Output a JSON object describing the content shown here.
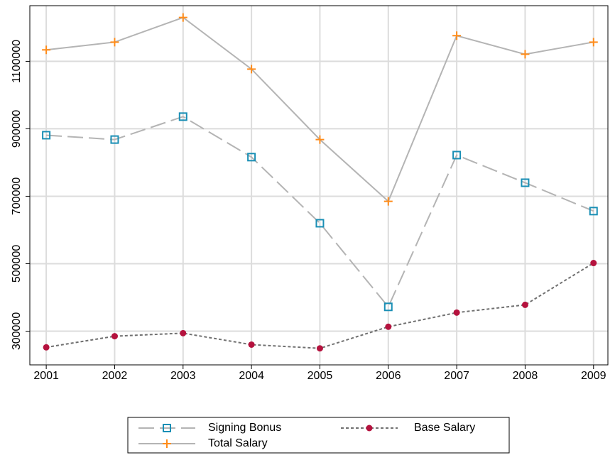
{
  "chart_data": {
    "type": "line",
    "x": [
      2001,
      2002,
      2003,
      2004,
      2005,
      2006,
      2007,
      2008,
      2009
    ],
    "series": [
      {
        "name": "Signing Bonus",
        "color": "#1a8fb5",
        "line_color": "#b4b4b4",
        "marker": "square",
        "dash": "long",
        "values": [
          881000,
          868000,
          936000,
          816000,
          620000,
          372000,
          822000,
          740000,
          656000
        ]
      },
      {
        "name": "Base Salary",
        "color": "#b5123e",
        "line_color": "#707070",
        "marker": "circle",
        "dash": "short",
        "values": [
          252000,
          285000,
          294000,
          260000,
          249000,
          313000,
          355000,
          378000,
          502000
        ]
      },
      {
        "name": "Total Salary",
        "color": "#ff8c1a",
        "line_color": "#b4b4b4",
        "marker": "plus",
        "dash": "solid",
        "values": [
          1134000,
          1157000,
          1230000,
          1077000,
          868000,
          685000,
          1176000,
          1121000,
          1157000
        ]
      }
    ],
    "xlim": [
      2000.76,
      2009.21
    ],
    "xticks": [
      2001,
      2002,
      2003,
      2004,
      2005,
      2006,
      2007,
      2008,
      2009
    ],
    "ylim": [
      200000,
      1265000
    ],
    "yticks": [
      300000,
      500000,
      700000,
      900000,
      1100000
    ],
    "grid": true,
    "legend": "bottom"
  }
}
